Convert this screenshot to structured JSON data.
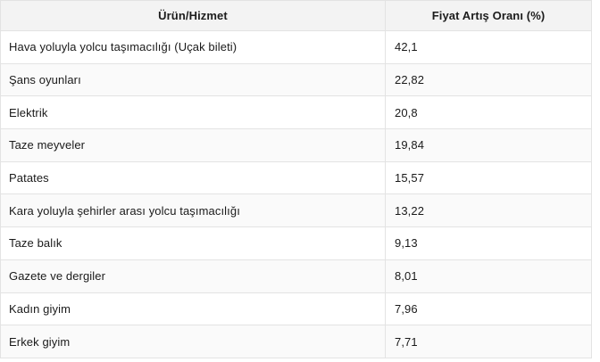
{
  "table": {
    "headers": {
      "product": "Ürün/Hizmet",
      "rate": "Fiyat Artış Oranı (%)"
    },
    "rows": [
      {
        "product": "Hava yoluyla yolcu taşımacılığı (Uçak bileti)",
        "rate": "42,1"
      },
      {
        "product": "Şans oyunları",
        "rate": "22,82"
      },
      {
        "product": "Elektrik",
        "rate": "20,8"
      },
      {
        "product": "Taze meyveler",
        "rate": "19,84"
      },
      {
        "product": "Patates",
        "rate": "15,57"
      },
      {
        "product": "Kara yoluyla şehirler arası yolcu taşımacılığı",
        "rate": "13,22"
      },
      {
        "product": "Taze balık",
        "rate": "9,13"
      },
      {
        "product": "Gazete ve dergiler",
        "rate": "8,01"
      },
      {
        "product": "Kadın giyim",
        "rate": "7,96"
      },
      {
        "product": "Erkek giyim",
        "rate": "7,71"
      }
    ]
  }
}
